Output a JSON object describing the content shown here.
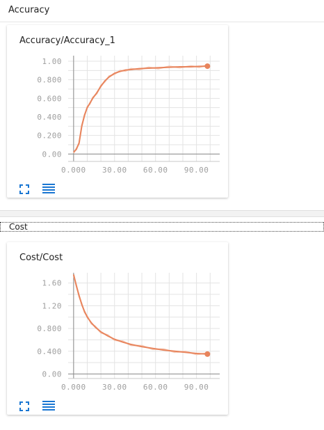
{
  "sections": [
    {
      "header": "Accuracy",
      "card_title": "Accuracy/Accuracy_1",
      "chart_data": {
        "type": "line",
        "title": "Accuracy/Accuracy_1",
        "xlim": [
          -4,
          107
        ],
        "ylim": [
          -0.08,
          1.06
        ],
        "x_ticks": [
          0,
          30,
          60,
          90
        ],
        "x_tick_labels": [
          "0.000",
          "30.00",
          "60.00",
          "90.00"
        ],
        "y_ticks": [
          0,
          0.2,
          0.4,
          0.6,
          0.8,
          1.0
        ],
        "y_tick_labels": [
          "0.00",
          "0.200",
          "0.400",
          "0.600",
          "0.800",
          "1.00"
        ],
        "grid": true,
        "color": "#e8845c",
        "x": [
          0,
          2,
          4,
          6,
          8,
          10,
          12,
          14,
          17,
          20,
          23,
          26,
          30,
          34,
          38,
          42,
          48,
          55,
          62,
          70,
          78,
          86,
          92,
          98
        ],
        "y": [
          0.02,
          0.05,
          0.12,
          0.3,
          0.42,
          0.5,
          0.55,
          0.6,
          0.66,
          0.73,
          0.79,
          0.83,
          0.87,
          0.89,
          0.905,
          0.91,
          0.92,
          0.925,
          0.93,
          0.935,
          0.94,
          0.94,
          0.945,
          0.947
        ]
      },
      "icons": {
        "fullscreen": "fullscreen-icon",
        "list": "list-icon"
      }
    },
    {
      "header": "Cost",
      "card_title": "Cost/Cost",
      "chart_data": {
        "type": "line",
        "title": "Cost/Cost",
        "xlim": [
          -4,
          107
        ],
        "ylim": [
          -0.08,
          1.78
        ],
        "x_ticks": [
          0,
          30,
          60,
          90
        ],
        "x_tick_labels": [
          "0.000",
          "30.00",
          "60.00",
          "90.00"
        ],
        "y_ticks": [
          0,
          0.4,
          0.8,
          1.2,
          1.6
        ],
        "y_tick_labels": [
          "0.00",
          "0.400",
          "0.800",
          "1.20",
          "1.60"
        ],
        "grid": true,
        "color": "#e8845c",
        "x": [
          0,
          2,
          4,
          6,
          8,
          10,
          13,
          16,
          20,
          25,
          30,
          36,
          42,
          50,
          58,
          66,
          74,
          82,
          90,
          98
        ],
        "y": [
          1.75,
          1.55,
          1.38,
          1.22,
          1.1,
          1.0,
          0.9,
          0.82,
          0.74,
          0.67,
          0.61,
          0.56,
          0.52,
          0.48,
          0.45,
          0.42,
          0.4,
          0.38,
          0.36,
          0.35
        ]
      },
      "icons": {
        "fullscreen": "fullscreen-icon",
        "list": "list-icon"
      }
    }
  ]
}
